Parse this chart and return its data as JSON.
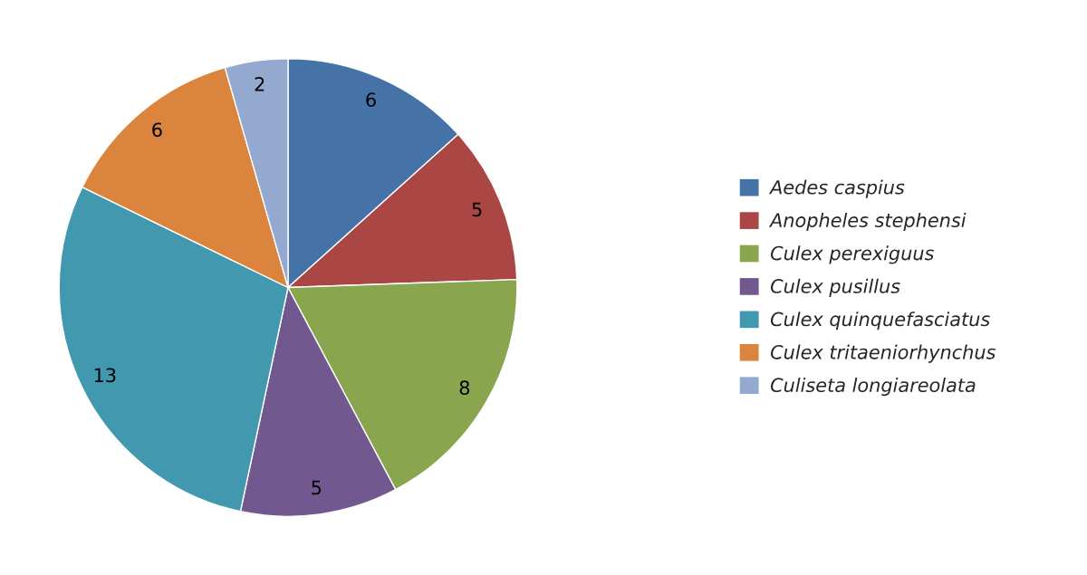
{
  "chart_data": {
    "type": "pie",
    "categories": [
      "Aedes caspius",
      "Anopheles stephensi",
      "Culex perexiguus",
      "Culex pusillus",
      "Culex quinquefasciatus",
      "Culex tritaeniorhynchus",
      "Culiseta longiareolata"
    ],
    "values": [
      6,
      5,
      8,
      5,
      13,
      6,
      2
    ],
    "colors": [
      "#4572a7",
      "#aa4643",
      "#89a54e",
      "#71588f",
      "#4198af",
      "#db843d",
      "#93a9cf"
    ],
    "data_labels": true,
    "legend": "right"
  }
}
